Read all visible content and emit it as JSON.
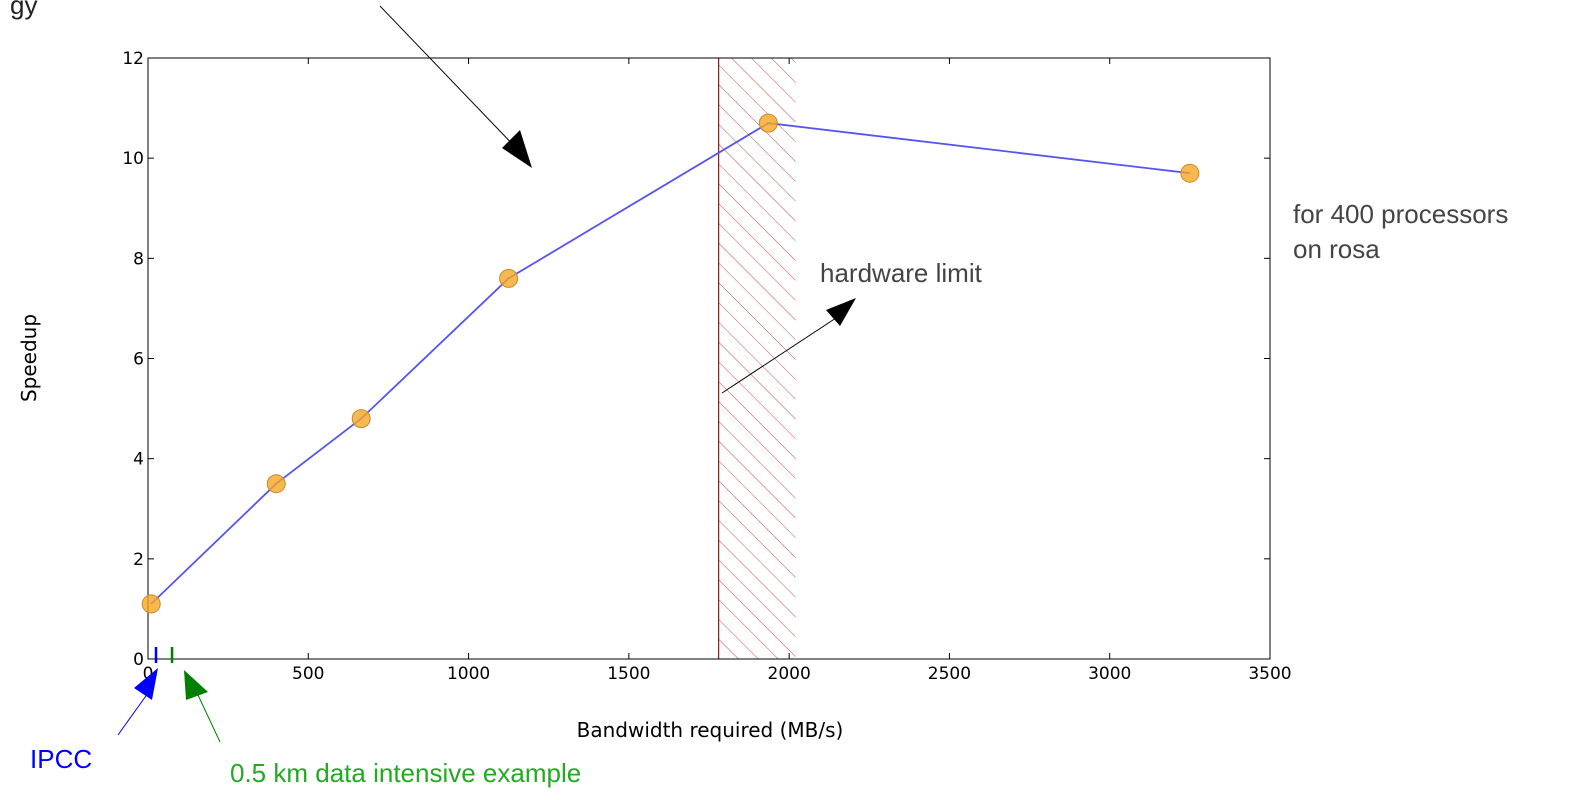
{
  "chart_data": {
    "type": "line",
    "title_fragment": "gy",
    "xlabel": "Bandwidth required (MB/s)",
    "ylabel": "Speedup",
    "xlim": [
      0,
      3500
    ],
    "ylim": [
      0,
      12
    ],
    "xticks": [
      0,
      500,
      1000,
      1500,
      2000,
      2500,
      3000,
      3500
    ],
    "yticks": [
      0,
      2,
      4,
      6,
      8,
      10,
      12
    ],
    "grid": false,
    "series": [
      {
        "x": [
          10,
          400,
          665,
          1125,
          1935,
          3250
        ],
        "y": [
          1.1,
          3.5,
          4.8,
          7.6,
          10.7,
          9.7
        ]
      }
    ],
    "hatched_region": {
      "x_start": 1780,
      "x_end": 2020,
      "color": "#b03a3a"
    },
    "markers": [
      {
        "x": 25,
        "label": "IPCC",
        "color": "#0000ff"
      },
      {
        "x": 75,
        "label": "0.5 km data intensive example",
        "color": "#008000"
      }
    ],
    "annotations": {
      "hardware_limit": "hardware limit",
      "processors_line1": "for 400 processors",
      "processors_line2": "on rosa"
    },
    "colors": {
      "line": "#5555ee",
      "point_fill": "#f5a623",
      "point_stroke": "#c88a2a",
      "ipcc": "#0000ff",
      "example_text": "#22aa22",
      "example_tick": "#008000",
      "annotation_text": "#444444"
    }
  }
}
